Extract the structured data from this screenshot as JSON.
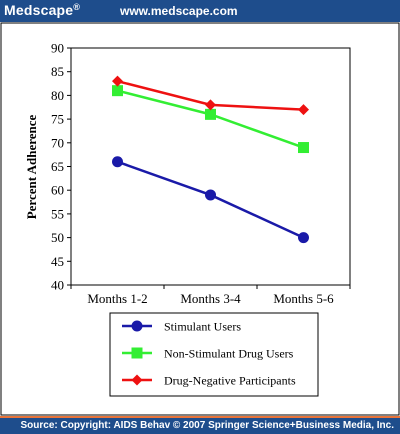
{
  "header": {
    "brand": "Medscape",
    "brand_mark": "®",
    "url": "www.medscape.com"
  },
  "footer": {
    "source": "Source: Copyright: AIDS Behav © 2007 Springer Science+Business Media, Inc."
  },
  "chart_data": {
    "type": "line",
    "title": "",
    "xlabel": "",
    "ylabel": "Percent Adherence",
    "categories": [
      "Months 1-2",
      "Months 3-4",
      "Months 5-6"
    ],
    "ylim": [
      40,
      90
    ],
    "yticks": [
      40,
      45,
      50,
      55,
      60,
      65,
      70,
      75,
      80,
      85,
      90
    ],
    "grid": false,
    "legend_position": "bottom",
    "series": [
      {
        "name": "Stimulant Users",
        "values": [
          66,
          59,
          50
        ],
        "color": "#1a1aa8",
        "marker": "circle"
      },
      {
        "name": "Non-Stimulant Drug Users",
        "values": [
          81,
          76,
          69
        ],
        "color": "#33ee33",
        "marker": "square"
      },
      {
        "name": "Drug-Negative Participants",
        "values": [
          83,
          78,
          77
        ],
        "color": "#ee1111",
        "marker": "diamond"
      }
    ]
  }
}
